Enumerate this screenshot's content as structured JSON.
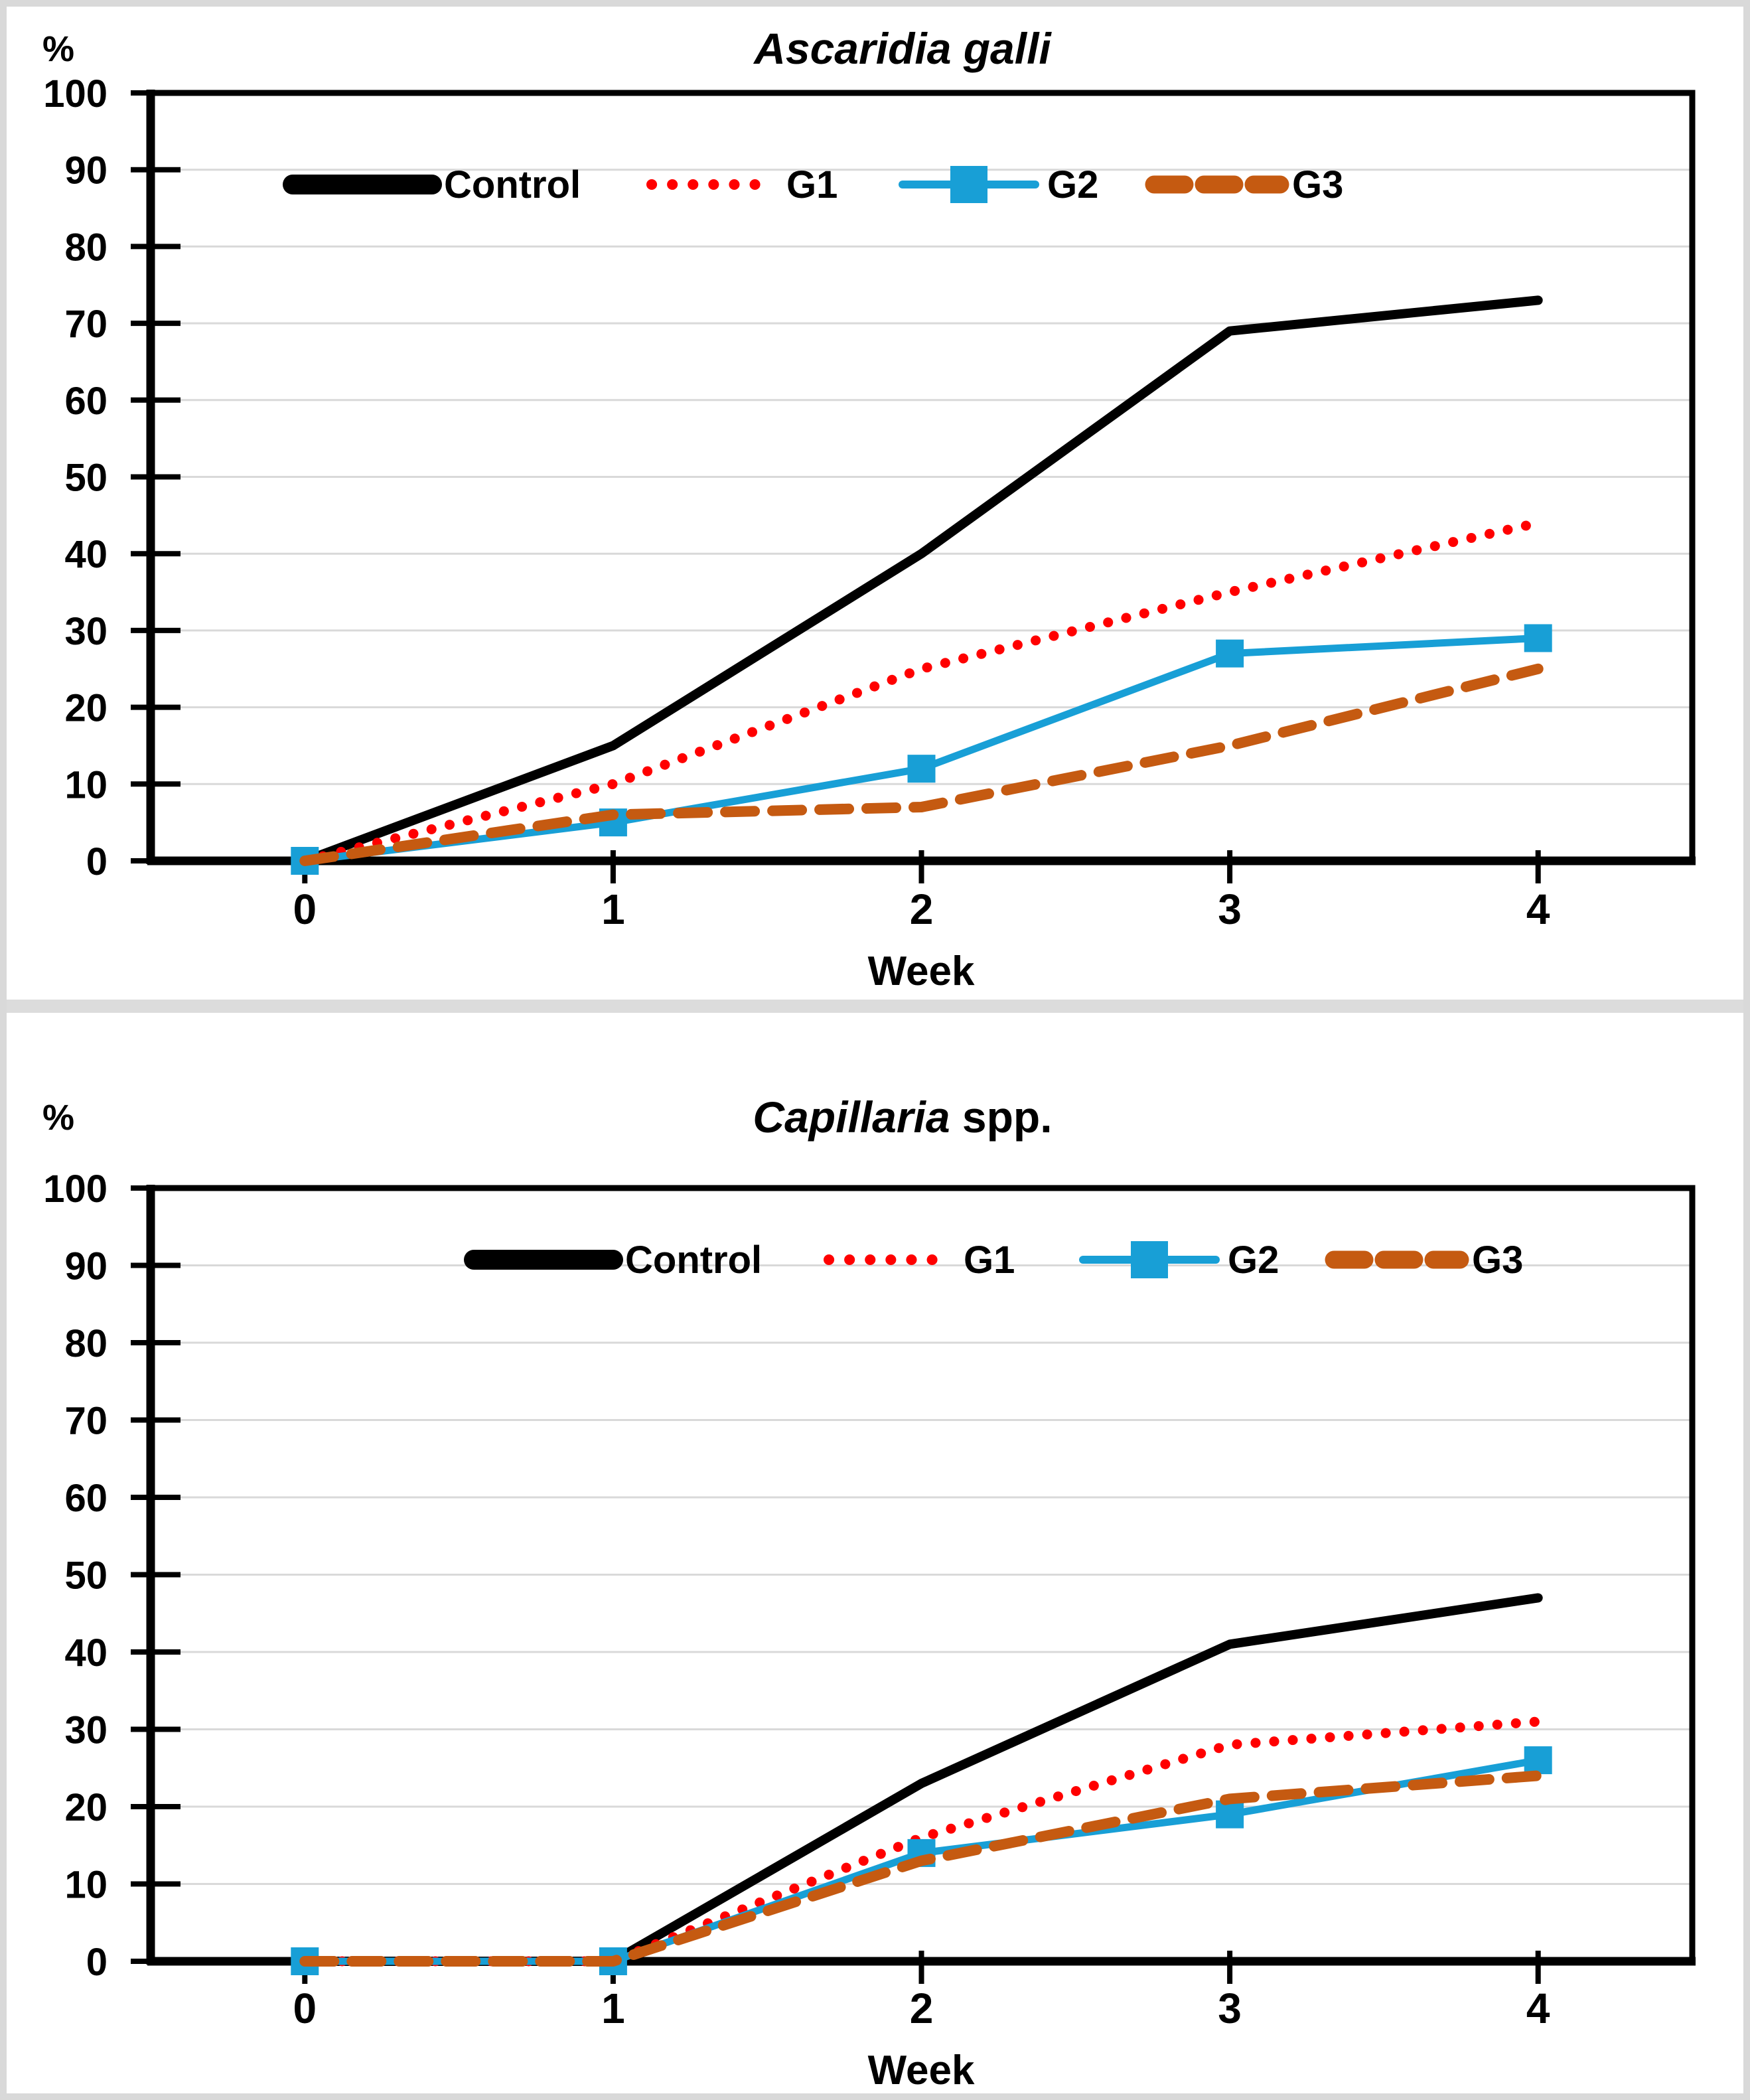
{
  "figure": {
    "background": "#FFFFFF",
    "frame_color": "#D9D9D9",
    "divider_color": "#DCDCDC",
    "axis_color": "#000000",
    "gridline_color": "#D9D9D9"
  },
  "chart_data": [
    {
      "type": "line",
      "title_italic": "Ascaridia galli",
      "title_regular": "",
      "ylabel": "%",
      "xlabel": "Week",
      "categories": [
        0,
        1,
        2,
        3,
        4
      ],
      "ylim": [
        0,
        100
      ],
      "ytick_step": 10,
      "grid": true,
      "legend_position": "inside-top",
      "series": [
        {
          "name": "Control",
          "values": [
            0,
            15,
            40,
            69,
            73
          ],
          "color": "#000000",
          "line_style": "solid",
          "marker": "none"
        },
        {
          "name": "G1",
          "values": [
            0,
            10,
            25,
            35,
            44
          ],
          "color": "#FF0000",
          "line_style": "dotted",
          "marker": "none"
        },
        {
          "name": "G2",
          "values": [
            0,
            5,
            12,
            27,
            29
          ],
          "color": "#189FD6",
          "line_style": "solid",
          "marker": "square"
        },
        {
          "name": "G3",
          "values": [
            0,
            6,
            7,
            15,
            25
          ],
          "color": "#C55A11",
          "line_style": "dashed",
          "marker": "none"
        }
      ]
    },
    {
      "type": "line",
      "title_italic": "Capillaria",
      "title_regular": " spp.",
      "ylabel": "%",
      "xlabel": "Week",
      "categories": [
        0,
        1,
        2,
        3,
        4
      ],
      "ylim": [
        0,
        100
      ],
      "ytick_step": 10,
      "grid": true,
      "legend_position": "inside-top",
      "series": [
        {
          "name": "Control",
          "values": [
            0,
            0,
            23,
            41,
            47
          ],
          "color": "#000000",
          "line_style": "solid",
          "marker": "none"
        },
        {
          "name": "G1",
          "values": [
            0,
            0,
            16,
            28,
            31
          ],
          "color": "#FF0000",
          "line_style": "dotted",
          "marker": "none"
        },
        {
          "name": "G2",
          "values": [
            0,
            0,
            14,
            19,
            26
          ],
          "color": "#189FD6",
          "line_style": "solid",
          "marker": "square"
        },
        {
          "name": "G3",
          "values": [
            0,
            0,
            13,
            21,
            24
          ],
          "color": "#C55A11",
          "line_style": "dashed",
          "marker": "none"
        }
      ]
    }
  ]
}
